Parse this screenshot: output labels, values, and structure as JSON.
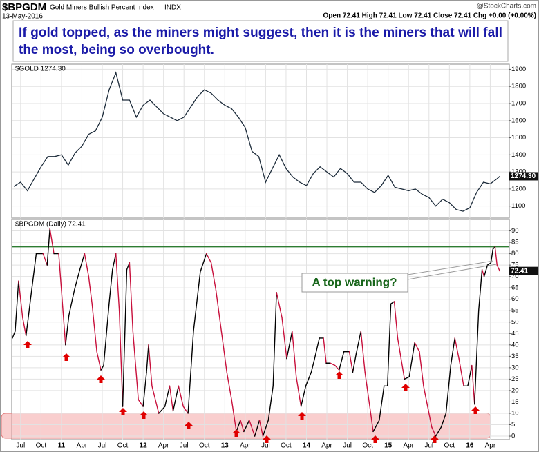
{
  "header": {
    "symbol": "$BPGDM",
    "name": "Gold Miners Bullish Percent Index",
    "exchange": "INDX",
    "source": "@StockCharts.com",
    "date": "13-May-2016",
    "quote": "Open 72.41 High 72.41 Low 72.41 Close 72.41 Chg +0.00 (+0.00%)"
  },
  "commentary": [
    "If gold topped, as the miners might suggest, then it is the miners that will fall",
    "the most, being so overbought."
  ],
  "chart_data": [
    {
      "type": "line",
      "legend": "$GOLD 1274.30",
      "last_label": "1274.30",
      "color": "#1c2b3a",
      "x": [
        5,
        6,
        7,
        8,
        9,
        10,
        11,
        12,
        13,
        14,
        15,
        16,
        17,
        18,
        19,
        20,
        21,
        22,
        23,
        24,
        25,
        26,
        27,
        28,
        29,
        30,
        31,
        32,
        33,
        34,
        35,
        36,
        37,
        38,
        39,
        40,
        41,
        42,
        43,
        44,
        45,
        46,
        47,
        48,
        49,
        50,
        51,
        52,
        53,
        54,
        55,
        56,
        57,
        58,
        59,
        60,
        61,
        62,
        63,
        64,
        65,
        66,
        67,
        68,
        69,
        70,
        71,
        72,
        73,
        74,
        75,
        76,
        76.4
      ],
      "values": [
        1215,
        1240,
        1190,
        1260,
        1330,
        1390,
        1390,
        1400,
        1340,
        1410,
        1450,
        1520,
        1540,
        1620,
        1780,
        1880,
        1720,
        1720,
        1620,
        1690,
        1720,
        1680,
        1640,
        1620,
        1600,
        1620,
        1680,
        1740,
        1780,
        1760,
        1720,
        1690,
        1670,
        1620,
        1560,
        1420,
        1390,
        1240,
        1320,
        1400,
        1320,
        1270,
        1240,
        1220,
        1290,
        1330,
        1300,
        1270,
        1320,
        1290,
        1240,
        1240,
        1200,
        1180,
        1220,
        1280,
        1210,
        1200,
        1190,
        1200,
        1170,
        1150,
        1100,
        1140,
        1120,
        1080,
        1070,
        1090,
        1180,
        1240,
        1230,
        1260,
        1274.3
      ],
      "xlim": [
        4.8,
        77.8
      ],
      "xticks": [
        6,
        9,
        12,
        15,
        18,
        21,
        24,
        27,
        30,
        33,
        36,
        39,
        42,
        45,
        48,
        51,
        54,
        57,
        60,
        63,
        66,
        69,
        72,
        75
      ],
      "ylim": [
        1030,
        1930
      ],
      "yticks": [
        1100,
        1200,
        1300,
        1400,
        1500,
        1600,
        1700,
        1800,
        1900
      ],
      "grid": true
    },
    {
      "type": "line",
      "legend": "$BPGDM (Daily) 72.41",
      "last_label": "72.41",
      "up_color": "#000000",
      "down_color": "#c8103c",
      "x": [
        4.8,
        5.2,
        5.7,
        6.3,
        6.8,
        7.5,
        8.3,
        9.3,
        9.9,
        10.3,
        10.9,
        11.6,
        12.6,
        13.1,
        13.9,
        14.7,
        15.4,
        16.0,
        16.5,
        17.2,
        17.8,
        18.2,
        19.0,
        19.5,
        20.0,
        20.5,
        21.0,
        21.6,
        22.0,
        22.5,
        23.3,
        24.0,
        24.5,
        24.8,
        25.3,
        26.3,
        27.2,
        27.9,
        28.4,
        29.2,
        29.9,
        30.6,
        31.4,
        32.4,
        33.3,
        34.0,
        34.7,
        35.5,
        36.3,
        37.0,
        37.7,
        38.3,
        38.8,
        39.6,
        40.4,
        41.1,
        41.6,
        42.4,
        43.1,
        43.6,
        44.4,
        45.1,
        45.9,
        46.5,
        47.2,
        47.9,
        48.7,
        49.2,
        49.9,
        50.5,
        50.9,
        51.5,
        52.2,
        52.8,
        53.5,
        54.3,
        54.8,
        55.3,
        56.0,
        56.6,
        57.3,
        57.8,
        58.7,
        59.4,
        59.9,
        60.4,
        60.9,
        61.4,
        61.9,
        62.4,
        63.1,
        63.9,
        64.6,
        65.2,
        65.8,
        66.4,
        67.0,
        67.8,
        68.5,
        69.2,
        69.8,
        70.4,
        71.1,
        71.7,
        72.3,
        72.7,
        73.3,
        73.8,
        74.1,
        74.6,
        75.1,
        75.4,
        75.7,
        76.0,
        76.4
      ],
      "values": [
        43,
        46,
        68,
        52,
        44,
        61,
        80,
        80,
        75,
        91,
        80,
        80,
        40,
        53,
        64,
        73,
        80,
        70,
        58,
        37,
        29,
        31,
        58,
        73,
        80,
        55,
        13,
        73,
        76,
        46,
        16,
        13,
        28,
        40,
        22,
        10,
        13,
        22,
        11,
        22,
        13,
        10,
        46,
        72,
        80,
        76,
        64,
        46,
        28,
        16,
        2,
        7,
        2,
        7,
        0,
        7,
        0,
        7,
        22,
        63,
        52,
        34,
        46,
        26,
        13,
        22,
        28,
        34,
        43,
        43,
        32,
        32,
        31,
        29,
        37,
        37,
        28,
        36,
        46,
        28,
        13,
        2,
        7,
        22,
        22,
        58,
        59,
        43,
        34,
        25,
        26,
        41,
        37,
        22,
        13,
        4,
        0,
        4,
        10,
        31,
        43,
        34,
        22,
        22,
        31,
        14,
        55,
        73,
        70,
        75,
        76,
        82,
        83,
        75,
        72.41
      ],
      "xlim": [
        4.8,
        77.8
      ],
      "xticks": [
        {
          "value": 6,
          "label": "Jul"
        },
        {
          "value": 9,
          "label": "Oct"
        },
        {
          "value": 12,
          "label": "11"
        },
        {
          "value": 15,
          "label": "Apr"
        },
        {
          "value": 18,
          "label": "Jul"
        },
        {
          "value": 21,
          "label": "Oct"
        },
        {
          "value": 24,
          "label": "12"
        },
        {
          "value": 27,
          "label": "Apr"
        },
        {
          "value": 30,
          "label": "Jul"
        },
        {
          "value": 33,
          "label": "Oct"
        },
        {
          "value": 36,
          "label": "13"
        },
        {
          "value": 39,
          "label": "Apr"
        },
        {
          "value": 42,
          "label": "Jul"
        },
        {
          "value": 45,
          "label": "Oct"
        },
        {
          "value": 48,
          "label": "14"
        },
        {
          "value": 51,
          "label": "Apr"
        },
        {
          "value": 54,
          "label": "Jul"
        },
        {
          "value": 57,
          "label": "Oct"
        },
        {
          "value": 60,
          "label": "15"
        },
        {
          "value": 63,
          "label": "Apr"
        },
        {
          "value": 66,
          "label": "Jul"
        },
        {
          "value": 69,
          "label": "Oct"
        },
        {
          "value": 72,
          "label": "16"
        },
        {
          "value": 75,
          "label": "Apr"
        }
      ],
      "ylim": [
        -1.5,
        95
      ],
      "yticks": [
        0,
        5,
        10,
        15,
        20,
        25,
        30,
        35,
        40,
        45,
        50,
        55,
        60,
        65,
        70,
        75,
        80,
        85,
        90
      ],
      "grid": true,
      "reference_line": {
        "value": 83,
        "color": "#2e7d32"
      },
      "shaded_band": {
        "range": [
          0,
          10
        ],
        "color": "#f4a6a6"
      },
      "annotation": "A top warning?",
      "annotation_color": "#17651a"
    }
  ]
}
